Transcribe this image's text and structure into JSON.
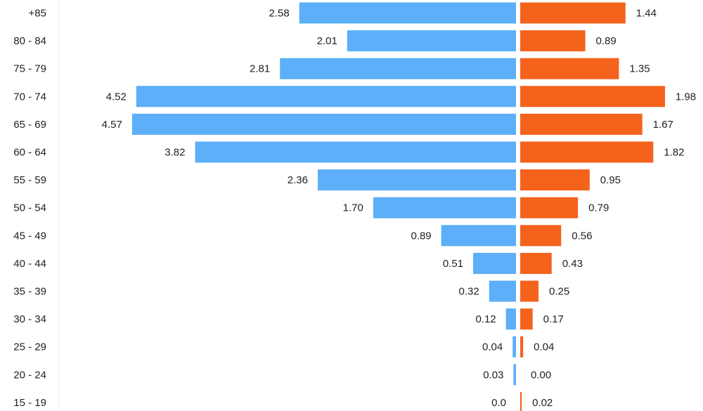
{
  "chart_data": {
    "type": "bar",
    "orientation": "horizontal",
    "layout": "population-pyramid",
    "categories": [
      "+85",
      "80 - 84",
      "75 - 79",
      "70 - 74",
      "65 - 69",
      "60 - 64",
      "55 - 59",
      "50 - 54",
      "45 - 49",
      "40 - 44",
      "35 - 39",
      "30 - 34",
      "25 - 29",
      "20 - 24",
      "15 - 19"
    ],
    "series": [
      {
        "side": "left",
        "color": "#5caff8",
        "values": [
          2.58,
          2.01,
          2.81,
          4.52,
          4.57,
          3.82,
          2.36,
          1.7,
          0.89,
          0.51,
          0.32,
          0.12,
          0.04,
          0.03,
          0.0
        ],
        "labels": [
          "2.58",
          "2.01",
          "2.81",
          "4.52",
          "4.57",
          "3.82",
          "2.36",
          "1.70",
          "0.89",
          "0.51",
          "0.32",
          "0.12",
          "0.04",
          "0.03",
          "0.0"
        ]
      },
      {
        "side": "right",
        "color": "#f4621c",
        "values": [
          1.44,
          0.89,
          1.35,
          1.98,
          1.67,
          1.82,
          0.95,
          0.79,
          0.56,
          0.43,
          0.25,
          0.17,
          0.04,
          0.0,
          0.02
        ],
        "labels": [
          "1.44",
          "0.89",
          "1.35",
          "1.98",
          "1.67",
          "1.82",
          "0.95",
          "0.79",
          "0.56",
          "0.43",
          "0.25",
          "0.17",
          "0.04",
          "0.00",
          "0.02"
        ]
      }
    ],
    "grid": false,
    "legend": "none"
  }
}
